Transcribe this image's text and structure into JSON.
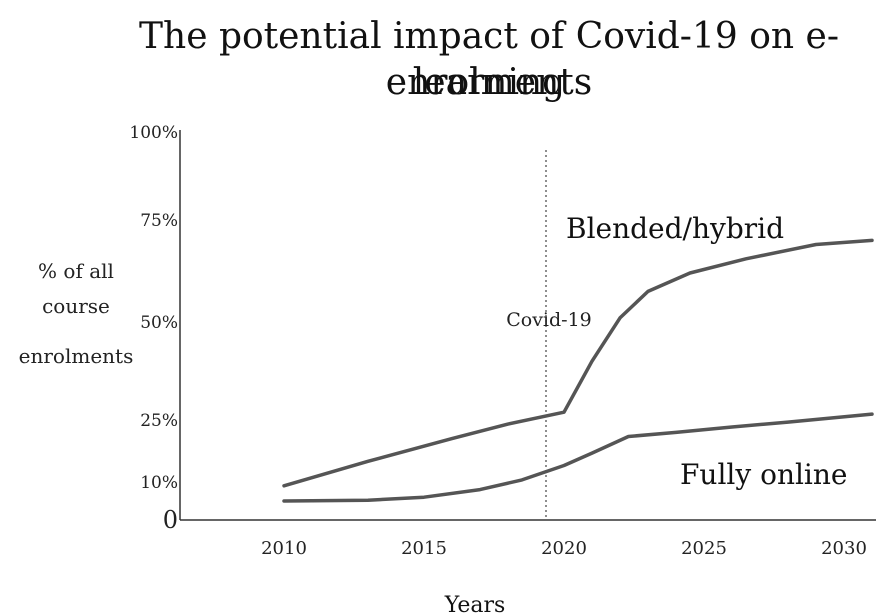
{
  "chart_data": {
    "type": "line",
    "title_line1": "The potential impact of Covid-19 on e-learning",
    "title_line2": "enrolments",
    "ylabel_lines": [
      "% of all",
      "course",
      "enrolments"
    ],
    "xlabel": "Years",
    "y_ticks": [
      {
        "value": 0,
        "label": "0"
      },
      {
        "value": 10,
        "label": "10%"
      },
      {
        "value": 25,
        "label": "25%"
      },
      {
        "value": 50,
        "label": "50%"
      },
      {
        "value": 75,
        "label": "75%"
      },
      {
        "value": 100,
        "label": "100%"
      }
    ],
    "x_ticks": [
      {
        "value": 2010,
        "label": "2010"
      },
      {
        "value": 2015,
        "label": "2015"
      },
      {
        "value": 2020,
        "label": "2020"
      },
      {
        "value": 2025,
        "label": "2025"
      },
      {
        "value": 2030,
        "label": "2030"
      }
    ],
    "xlim": [
      2007,
      2031
    ],
    "ylim": [
      0,
      100
    ],
    "annotation": {
      "x": 2020,
      "label": "Covid-19"
    },
    "series": [
      {
        "name": "Blended/hybrid",
        "color": "#555555",
        "points": [
          [
            2010,
            9
          ],
          [
            2013,
            15
          ],
          [
            2016,
            20.5
          ],
          [
            2018,
            24
          ],
          [
            2020,
            27
          ],
          [
            2021,
            40
          ],
          [
            2022,
            51
          ],
          [
            2023,
            57.5
          ],
          [
            2024.5,
            62
          ],
          [
            2026.5,
            65.5
          ],
          [
            2029,
            69
          ],
          [
            2031,
            70
          ]
        ]
      },
      {
        "name": "Fully online",
        "color": "#555555",
        "points": [
          [
            2010,
            5
          ],
          [
            2013,
            5.2
          ],
          [
            2015,
            6
          ],
          [
            2017,
            8
          ],
          [
            2018.5,
            10.5
          ],
          [
            2020,
            14
          ],
          [
            2021,
            17
          ],
          [
            2022.3,
            21
          ],
          [
            2024,
            22
          ],
          [
            2026,
            23.3
          ],
          [
            2028,
            24.5
          ],
          [
            2031,
            26.5
          ]
        ]
      }
    ]
  }
}
